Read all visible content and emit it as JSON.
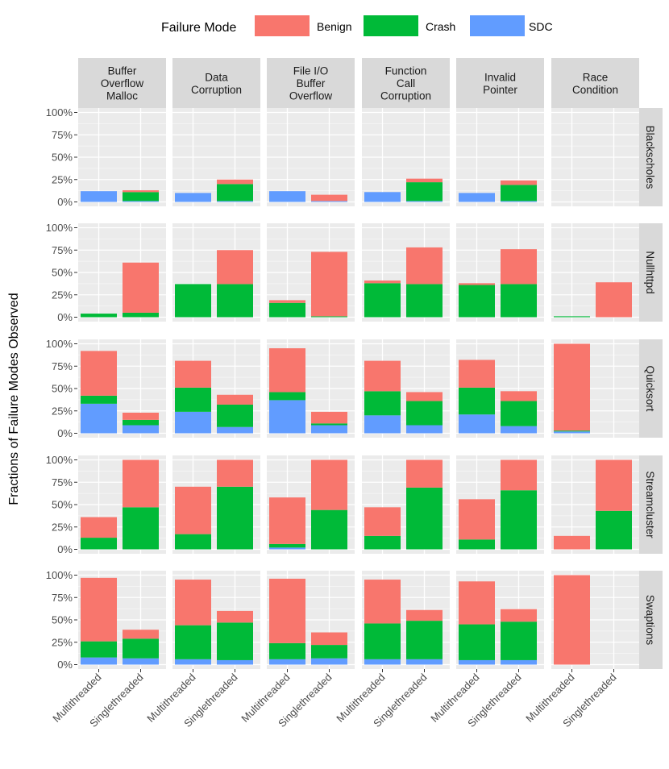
{
  "chart_data": {
    "type": "bar",
    "stacked": true,
    "faceted": true,
    "ylabel": "Fractions of Failure Modes Observed",
    "xlabel": "",
    "ylim": [
      0,
      1
    ],
    "y_ticks": [
      "0%",
      "25%",
      "50%",
      "75%",
      "100%"
    ],
    "legend": {
      "title": "Failure Mode",
      "position": "top",
      "items": [
        {
          "name": "Benign",
          "color": "#F8766D"
        },
        {
          "name": "Crash",
          "color": "#00BA38"
        },
        {
          "name": "SDC",
          "color": "#619CFF"
        }
      ]
    },
    "categories": [
      "Multithreaded",
      "Singlethreaded"
    ],
    "columns": [
      {
        "label_lines": [
          "Buffer",
          "Overflow",
          "Malloc"
        ]
      },
      {
        "label_lines": [
          "Data",
          "Corruption"
        ]
      },
      {
        "label_lines": [
          "File I/O",
          "Buffer",
          "Overflow"
        ]
      },
      {
        "label_lines": [
          "Function",
          "Call",
          "Corruption"
        ]
      },
      {
        "label_lines": [
          "Invalid",
          "Pointer"
        ]
      },
      {
        "label_lines": [
          "Race",
          "Condition"
        ]
      }
    ],
    "rows": [
      {
        "label": "Blackscholes",
        "cells": [
          {
            "Multithreaded": {
              "SDC": 0.12,
              "Crash": 0.0,
              "Benign": 0.0
            },
            "Singlethreaded": {
              "SDC": 0.01,
              "Crash": 0.1,
              "Benign": 0.02
            }
          },
          {
            "Multithreaded": {
              "SDC": 0.1,
              "Crash": 0.0,
              "Benign": 0.0
            },
            "Singlethreaded": {
              "SDC": 0.01,
              "Crash": 0.19,
              "Benign": 0.05
            }
          },
          {
            "Multithreaded": {
              "SDC": 0.12,
              "Crash": 0.0,
              "Benign": 0.0
            },
            "Singlethreaded": {
              "SDC": 0.01,
              "Crash": 0.0,
              "Benign": 0.07
            }
          },
          {
            "Multithreaded": {
              "SDC": 0.11,
              "Crash": 0.0,
              "Benign": 0.0
            },
            "Singlethreaded": {
              "SDC": 0.01,
              "Crash": 0.21,
              "Benign": 0.04
            }
          },
          {
            "Multithreaded": {
              "SDC": 0.1,
              "Crash": 0.0,
              "Benign": 0.0
            },
            "Singlethreaded": {
              "SDC": 0.01,
              "Crash": 0.18,
              "Benign": 0.05
            }
          },
          {
            "Multithreaded": {
              "SDC": 0.0,
              "Crash": 0.0,
              "Benign": 0.0
            },
            "Singlethreaded": {
              "SDC": 0.0,
              "Crash": 0.0,
              "Benign": 0.0
            }
          }
        ]
      },
      {
        "label": "Nullhttpd",
        "cells": [
          {
            "Multithreaded": {
              "SDC": 0.0,
              "Crash": 0.04,
              "Benign": 0.0
            },
            "Singlethreaded": {
              "SDC": 0.0,
              "Crash": 0.05,
              "Benign": 0.56
            }
          },
          {
            "Multithreaded": {
              "SDC": 0.0,
              "Crash": 0.37,
              "Benign": 0.0
            },
            "Singlethreaded": {
              "SDC": 0.0,
              "Crash": 0.37,
              "Benign": 0.38
            }
          },
          {
            "Multithreaded": {
              "SDC": 0.0,
              "Crash": 0.16,
              "Benign": 0.03
            },
            "Singlethreaded": {
              "SDC": 0.0,
              "Crash": 0.01,
              "Benign": 0.72
            }
          },
          {
            "Multithreaded": {
              "SDC": 0.0,
              "Crash": 0.38,
              "Benign": 0.03
            },
            "Singlethreaded": {
              "SDC": 0.0,
              "Crash": 0.37,
              "Benign": 0.41
            }
          },
          {
            "Multithreaded": {
              "SDC": 0.0,
              "Crash": 0.36,
              "Benign": 0.02
            },
            "Singlethreaded": {
              "SDC": 0.0,
              "Crash": 0.37,
              "Benign": 0.39
            }
          },
          {
            "Multithreaded": {
              "SDC": 0.0,
              "Crash": 0.01,
              "Benign": 0.0
            },
            "Singlethreaded": {
              "SDC": 0.0,
              "Crash": 0.0,
              "Benign": 0.39
            }
          }
        ]
      },
      {
        "label": "Quicksort",
        "cells": [
          {
            "Multithreaded": {
              "SDC": 0.33,
              "Crash": 0.09,
              "Benign": 0.5
            },
            "Singlethreaded": {
              "SDC": 0.09,
              "Crash": 0.06,
              "Benign": 0.08
            }
          },
          {
            "Multithreaded": {
              "SDC": 0.24,
              "Crash": 0.27,
              "Benign": 0.3
            },
            "Singlethreaded": {
              "SDC": 0.07,
              "Crash": 0.25,
              "Benign": 0.11
            }
          },
          {
            "Multithreaded": {
              "SDC": 0.37,
              "Crash": 0.09,
              "Benign": 0.49
            },
            "Singlethreaded": {
              "SDC": 0.09,
              "Crash": 0.02,
              "Benign": 0.13
            }
          },
          {
            "Multithreaded": {
              "SDC": 0.2,
              "Crash": 0.27,
              "Benign": 0.34
            },
            "Singlethreaded": {
              "SDC": 0.09,
              "Crash": 0.27,
              "Benign": 0.1
            }
          },
          {
            "Multithreaded": {
              "SDC": 0.21,
              "Crash": 0.3,
              "Benign": 0.31
            },
            "Singlethreaded": {
              "SDC": 0.08,
              "Crash": 0.28,
              "Benign": 0.11
            }
          },
          {
            "Multithreaded": {
              "SDC": 0.02,
              "Crash": 0.01,
              "Benign": 0.97
            },
            "Singlethreaded": {
              "SDC": 0.0,
              "Crash": 0.0,
              "Benign": 0.0
            }
          }
        ]
      },
      {
        "label": "Streamcluster",
        "cells": [
          {
            "Multithreaded": {
              "SDC": 0.0,
              "Crash": 0.13,
              "Benign": 0.23
            },
            "Singlethreaded": {
              "SDC": 0.0,
              "Crash": 0.47,
              "Benign": 0.53
            }
          },
          {
            "Multithreaded": {
              "SDC": 0.0,
              "Crash": 0.17,
              "Benign": 0.53
            },
            "Singlethreaded": {
              "SDC": 0.0,
              "Crash": 0.7,
              "Benign": 0.3
            }
          },
          {
            "Multithreaded": {
              "SDC": 0.02,
              "Crash": 0.04,
              "Benign": 0.52
            },
            "Singlethreaded": {
              "SDC": 0.0,
              "Crash": 0.44,
              "Benign": 0.56
            }
          },
          {
            "Multithreaded": {
              "SDC": 0.0,
              "Crash": 0.15,
              "Benign": 0.32
            },
            "Singlethreaded": {
              "SDC": 0.0,
              "Crash": 0.69,
              "Benign": 0.31
            }
          },
          {
            "Multithreaded": {
              "SDC": 0.0,
              "Crash": 0.11,
              "Benign": 0.45
            },
            "Singlethreaded": {
              "SDC": 0.0,
              "Crash": 0.66,
              "Benign": 0.34
            }
          },
          {
            "Multithreaded": {
              "SDC": 0.0,
              "Crash": 0.0,
              "Benign": 0.15
            },
            "Singlethreaded": {
              "SDC": 0.0,
              "Crash": 0.43,
              "Benign": 0.57
            }
          }
        ]
      },
      {
        "label": "Swaptions",
        "cells": [
          {
            "Multithreaded": {
              "SDC": 0.08,
              "Crash": 0.18,
              "Benign": 0.71
            },
            "Singlethreaded": {
              "SDC": 0.07,
              "Crash": 0.22,
              "Benign": 0.1
            }
          },
          {
            "Multithreaded": {
              "SDC": 0.06,
              "Crash": 0.38,
              "Benign": 0.51
            },
            "Singlethreaded": {
              "SDC": 0.05,
              "Crash": 0.42,
              "Benign": 0.13
            }
          },
          {
            "Multithreaded": {
              "SDC": 0.06,
              "Crash": 0.18,
              "Benign": 0.72
            },
            "Singlethreaded": {
              "SDC": 0.07,
              "Crash": 0.15,
              "Benign": 0.14
            }
          },
          {
            "Multithreaded": {
              "SDC": 0.06,
              "Crash": 0.4,
              "Benign": 0.49
            },
            "Singlethreaded": {
              "SDC": 0.06,
              "Crash": 0.43,
              "Benign": 0.12
            }
          },
          {
            "Multithreaded": {
              "SDC": 0.05,
              "Crash": 0.4,
              "Benign": 0.48
            },
            "Singlethreaded": {
              "SDC": 0.05,
              "Crash": 0.43,
              "Benign": 0.14
            }
          },
          {
            "Multithreaded": {
              "SDC": 0.0,
              "Crash": 0.0,
              "Benign": 1.0
            },
            "Singlethreaded": {
              "SDC": 0.0,
              "Crash": 0.0,
              "Benign": 0.0
            }
          }
        ]
      }
    ]
  }
}
